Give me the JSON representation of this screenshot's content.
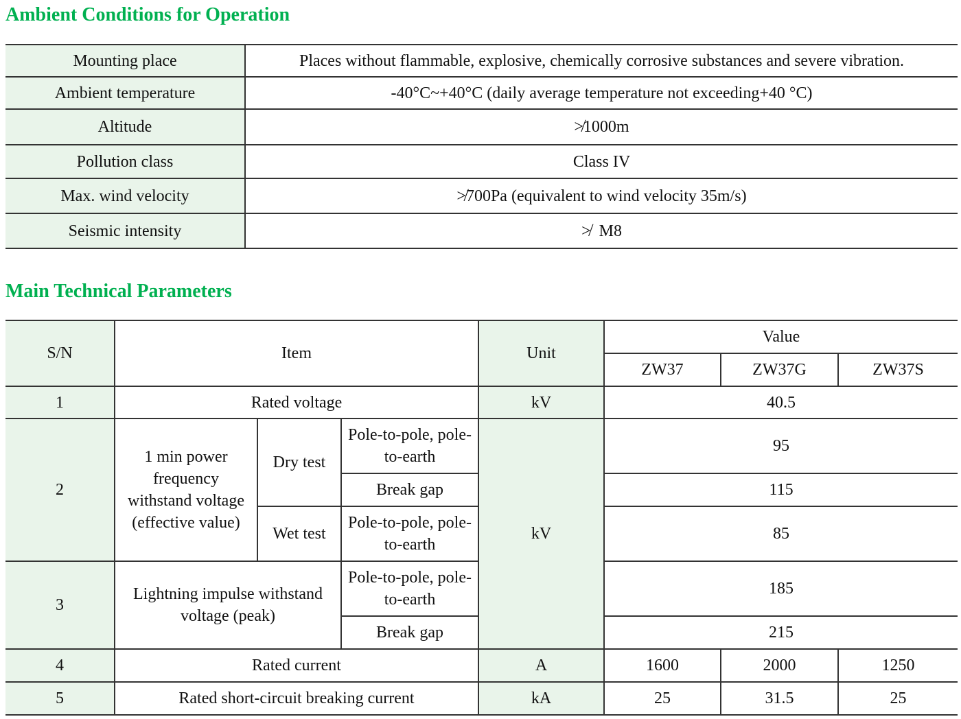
{
  "ambient": {
    "heading": "Ambient Conditions for Operation",
    "rows": [
      {
        "label": "Mounting place",
        "value": "Places without flammable, explosive, chemically corrosive substances and severe vibration."
      },
      {
        "label": "Ambient temperature",
        "value": "-40°C~+40°C (daily average temperature not exceeding+40 °C)"
      },
      {
        "label": "Altitude",
        "value": "≯1000m"
      },
      {
        "label": "Pollution class",
        "value": "Class IV"
      },
      {
        "label": "Max. wind velocity",
        "value": "≯700Pa (equivalent to wind velocity 35m/s)"
      },
      {
        "label": "Seismic intensity",
        "value": "≯  M8"
      }
    ]
  },
  "params": {
    "heading": "Main Technical Parameters",
    "header": {
      "sn": "S/N",
      "item": "Item",
      "unit": "Unit",
      "value": "Value",
      "models": [
        "ZW37",
        "ZW37G",
        "ZW37S"
      ]
    },
    "r1": {
      "sn": "1",
      "item": "Rated voltage",
      "unit": "kV",
      "value": "40.5"
    },
    "r2": {
      "sn": "2",
      "item": "1 min power frequency withstand voltage (effective value)",
      "dry": "Dry test",
      "wet": "Wet test",
      "p2p": "Pole-to-pole, pole-to-earth",
      "gap": "Break gap",
      "unit": "kV",
      "dry_p2p": "95",
      "dry_gap": "115",
      "wet_p2p": "85"
    },
    "r3": {
      "sn": "3",
      "item": "Lightning impulse withstand voltage (peak)",
      "p2p": "Pole-to-pole, pole-to-earth",
      "gap": "Break gap",
      "p2p_value": "185",
      "gap_value": "215"
    },
    "r4": {
      "sn": "4",
      "item": "Rated current",
      "unit": "A",
      "values": [
        "1600",
        "2000",
        "1250"
      ]
    },
    "r5": {
      "sn": "5",
      "item": "Rated short-circuit breaking current",
      "unit": "kA",
      "values": [
        "25",
        "31.5",
        "25"
      ]
    }
  }
}
